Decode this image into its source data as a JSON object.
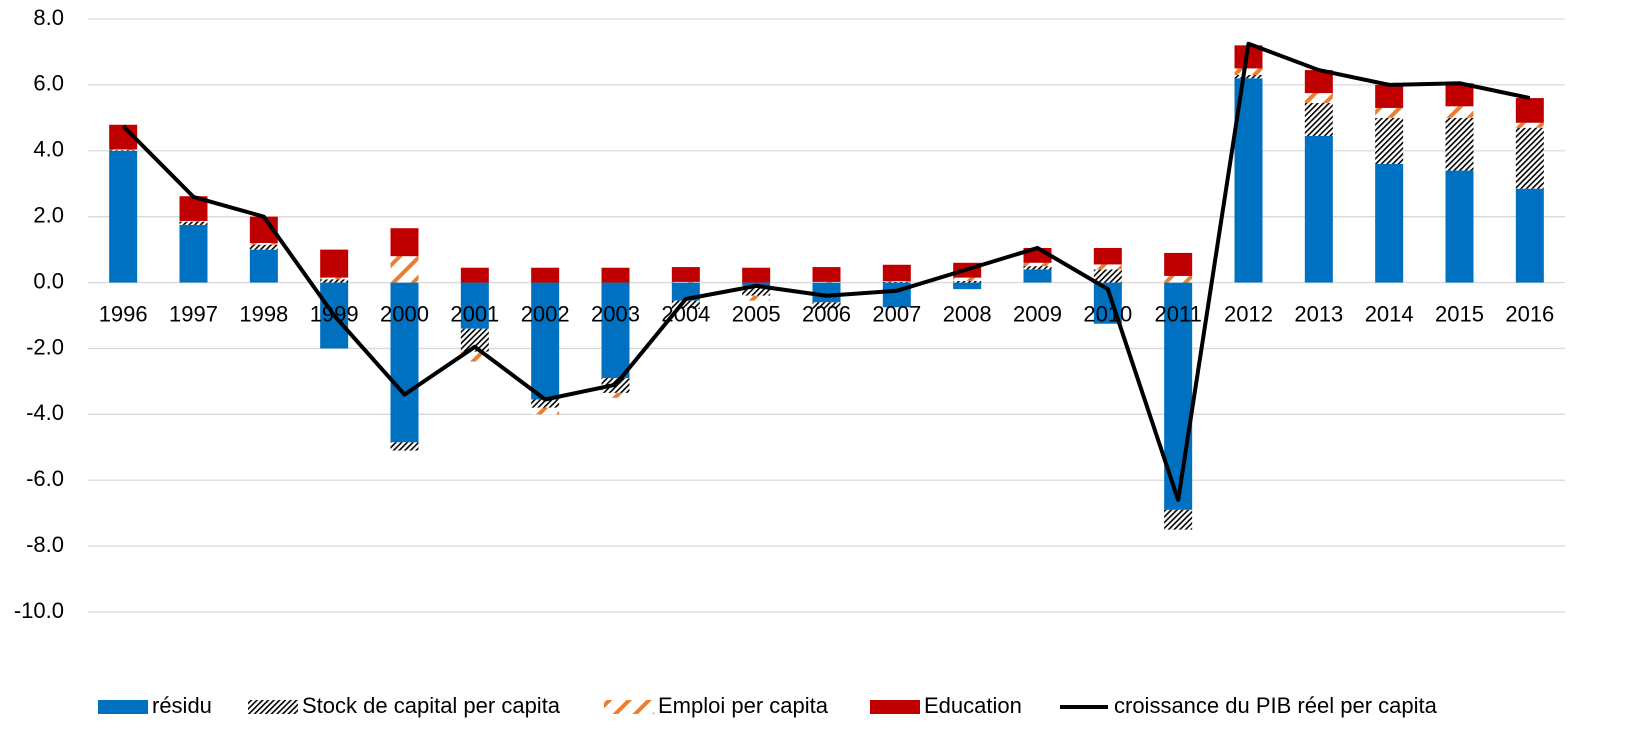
{
  "chart_data": {
    "type": "bar",
    "categories": [
      "1996",
      "1997",
      "1998",
      "1999",
      "2000",
      "2001",
      "2002",
      "2003",
      "2004",
      "2005",
      "2006",
      "2007",
      "2008",
      "2009",
      "2010",
      "2011",
      "2012",
      "2013",
      "2014",
      "2015",
      "2016"
    ],
    "series": [
      {
        "name": "résidu",
        "type": "bar",
        "color": "#0070c0",
        "pattern": "solid",
        "values": [
          4.0,
          1.75,
          1.0,
          -2.0,
          -4.85,
          -1.4,
          -3.55,
          -2.9,
          -0.55,
          -0.1,
          -0.6,
          -0.75,
          -0.2,
          0.4,
          -1.25,
          -6.9,
          6.2,
          4.45,
          3.6,
          3.4,
          2.85
        ]
      },
      {
        "name": "Stock de capital per capita",
        "type": "bar",
        "color": "#000000",
        "pattern": "dots",
        "values": [
          0.02,
          0.1,
          0.15,
          0.1,
          -0.25,
          -0.7,
          -0.25,
          -0.45,
          -0.25,
          -0.3,
          -0.2,
          0.02,
          0.05,
          0.1,
          0.4,
          -0.6,
          0.1,
          1.0,
          1.4,
          1.6,
          1.85
        ]
      },
      {
        "name": "Emploi per capita",
        "type": "bar",
        "color": "#ed7d31",
        "pattern": "stripes",
        "values": [
          0.02,
          0.02,
          0.05,
          0.05,
          0.8,
          -0.3,
          -0.2,
          -0.15,
          0.02,
          -0.15,
          0.02,
          0.02,
          0.1,
          0.1,
          0.15,
          0.2,
          0.2,
          0.3,
          0.3,
          0.35,
          0.15
        ]
      },
      {
        "name": "Education",
        "type": "bar",
        "color": "#c00000",
        "pattern": "solid",
        "values": [
          0.75,
          0.75,
          0.8,
          0.85,
          0.85,
          0.45,
          0.45,
          0.45,
          0.45,
          0.45,
          0.45,
          0.5,
          0.45,
          0.45,
          0.5,
          0.7,
          0.7,
          0.7,
          0.7,
          0.7,
          0.75
        ]
      },
      {
        "name": "croissance du PIB réel per capita",
        "type": "line",
        "color": "#000000",
        "values": [
          4.75,
          2.6,
          2.0,
          -1.0,
          -3.4,
          -1.95,
          -3.55,
          -3.1,
          -0.5,
          -0.1,
          -0.4,
          -0.25,
          0.4,
          1.05,
          -0.2,
          -6.6,
          7.25,
          6.45,
          6.0,
          6.05,
          5.6
        ]
      }
    ],
    "ylim": [
      -10,
      8
    ],
    "yticks": [
      {
        "value": 8,
        "label": "8.0"
      },
      {
        "value": 6,
        "label": "6.0"
      },
      {
        "value": 4,
        "label": "4.0"
      },
      {
        "value": 2,
        "label": "2.0"
      },
      {
        "value": 0,
        "label": "0.0"
      },
      {
        "value": -2,
        "label": "-2.0"
      },
      {
        "value": -4,
        "label": "-4.0"
      },
      {
        "value": -6,
        "label": "-6.0"
      },
      {
        "value": -8,
        "label": "-8.0"
      },
      {
        "value": -10,
        "label": "-10.0"
      }
    ],
    "grid": true,
    "legend": "bottom"
  }
}
